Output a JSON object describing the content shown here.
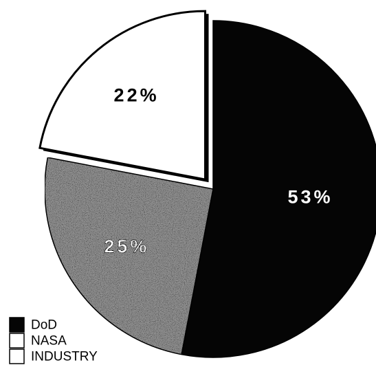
{
  "colors": {
    "dod": "#050505",
    "nasa": "#ffffff",
    "industry": "#8f8f8f",
    "outline": "#000000",
    "background": "#ffffff"
  },
  "chart_data": {
    "type": "pie",
    "title": "",
    "slices": [
      {
        "name": "DoD",
        "value": 53,
        "label": "53%",
        "exploded": false,
        "fill": "dod"
      },
      {
        "name": "NASA",
        "value": 22,
        "label": "22%",
        "exploded": true,
        "fill": "nasa"
      },
      {
        "name": "INDUSTRY",
        "value": 25,
        "label": "25%",
        "exploded": false,
        "fill": "industry"
      }
    ],
    "legend": {
      "placement": "bottom-left",
      "entries": [
        {
          "name": "DoD",
          "fill": "dod"
        },
        {
          "name": "NASA",
          "fill": "nasa"
        },
        {
          "name": "INDUSTRY",
          "fill": "industry"
        }
      ]
    }
  }
}
